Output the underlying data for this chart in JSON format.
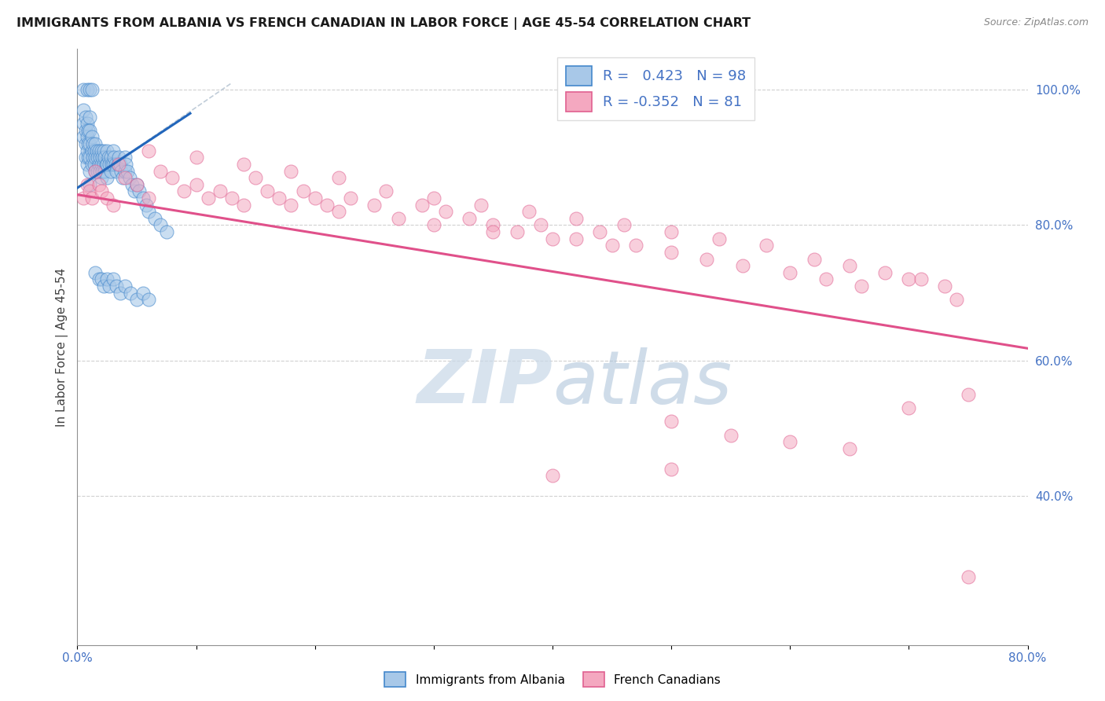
{
  "title": "IMMIGRANTS FROM ALBANIA VS FRENCH CANADIAN IN LABOR FORCE | AGE 45-54 CORRELATION CHART",
  "source": "Source: ZipAtlas.com",
  "ylabel": "In Labor Force | Age 45-54",
  "xlim": [
    0.0,
    0.8
  ],
  "ylim": [
    0.18,
    1.06
  ],
  "right_yticks": [
    0.4,
    0.6,
    0.8,
    1.0
  ],
  "right_yticklabels": [
    "40.0%",
    "60.0%",
    "80.0%",
    "100.0%"
  ],
  "R_albania": 0.423,
  "N_albania": 98,
  "R_french": -0.352,
  "N_french": 81,
  "color_albania_fill": "#a8c8e8",
  "color_albania_edge": "#4488cc",
  "color_french_fill": "#f4a8c0",
  "color_french_edge": "#e06090",
  "color_trendline_albania": "#2266bb",
  "color_trendline_french": "#e0508a",
  "color_refline": "#c8c8c8",
  "color_grid": "#d0d0d0",
  "color_axis_text": "#4472c4",
  "trendline_fr_x0": 0.0,
  "trendline_fr_y0": 0.845,
  "trendline_fr_x1": 0.8,
  "trendline_fr_y1": 0.618,
  "trendline_alb_x0": 0.0,
  "trendline_alb_y0": 0.855,
  "trendline_alb_x1": 0.095,
  "trendline_alb_y1": 0.965,
  "refline_x0": 0.005,
  "refline_y0": 0.86,
  "refline_x1": 0.13,
  "refline_y1": 1.01,
  "watermark_zip_color": "#c8d8e8",
  "watermark_atlas_color": "#a8c0d8",
  "albania_x": [
    0.005,
    0.005,
    0.005,
    0.007,
    0.007,
    0.007,
    0.007,
    0.008,
    0.008,
    0.008,
    0.008,
    0.009,
    0.009,
    0.009,
    0.01,
    0.01,
    0.01,
    0.01,
    0.01,
    0.01,
    0.012,
    0.012,
    0.012,
    0.013,
    0.013,
    0.014,
    0.014,
    0.015,
    0.015,
    0.015,
    0.016,
    0.017,
    0.017,
    0.018,
    0.018,
    0.019,
    0.019,
    0.02,
    0.02,
    0.02,
    0.021,
    0.021,
    0.022,
    0.022,
    0.023,
    0.023,
    0.024,
    0.025,
    0.025,
    0.025,
    0.026,
    0.027,
    0.028,
    0.028,
    0.029,
    0.03,
    0.03,
    0.031,
    0.032,
    0.033,
    0.034,
    0.035,
    0.036,
    0.037,
    0.038,
    0.04,
    0.04,
    0.041,
    0.042,
    0.044,
    0.046,
    0.048,
    0.05,
    0.052,
    0.055,
    0.058,
    0.06,
    0.065,
    0.07,
    0.075,
    0.005,
    0.008,
    0.01,
    0.012,
    0.015,
    0.018,
    0.02,
    0.022,
    0.025,
    0.027,
    0.03,
    0.033,
    0.036,
    0.04,
    0.045,
    0.05,
    0.055,
    0.06
  ],
  "albania_y": [
    0.97,
    0.95,
    0.93,
    0.96,
    0.94,
    0.92,
    0.9,
    0.95,
    0.93,
    0.91,
    0.89,
    0.94,
    0.92,
    0.9,
    0.96,
    0.94,
    0.92,
    0.9,
    0.88,
    0.86,
    0.93,
    0.91,
    0.89,
    0.92,
    0.9,
    0.91,
    0.89,
    0.92,
    0.9,
    0.88,
    0.91,
    0.9,
    0.88,
    0.91,
    0.89,
    0.9,
    0.88,
    0.91,
    0.89,
    0.87,
    0.9,
    0.88,
    0.91,
    0.89,
    0.9,
    0.88,
    0.89,
    0.91,
    0.89,
    0.87,
    0.9,
    0.89,
    0.9,
    0.88,
    0.89,
    0.91,
    0.89,
    0.9,
    0.89,
    0.88,
    0.89,
    0.9,
    0.89,
    0.88,
    0.87,
    0.9,
    0.88,
    0.89,
    0.88,
    0.87,
    0.86,
    0.85,
    0.86,
    0.85,
    0.84,
    0.83,
    0.82,
    0.81,
    0.8,
    0.79,
    1.0,
    1.0,
    1.0,
    1.0,
    0.73,
    0.72,
    0.72,
    0.71,
    0.72,
    0.71,
    0.72,
    0.71,
    0.7,
    0.71,
    0.7,
    0.69,
    0.7,
    0.69
  ],
  "french_x": [
    0.005,
    0.008,
    0.01,
    0.012,
    0.015,
    0.018,
    0.02,
    0.025,
    0.03,
    0.035,
    0.04,
    0.05,
    0.06,
    0.07,
    0.08,
    0.09,
    0.1,
    0.11,
    0.12,
    0.13,
    0.14,
    0.15,
    0.16,
    0.17,
    0.18,
    0.19,
    0.2,
    0.21,
    0.22,
    0.23,
    0.25,
    0.27,
    0.29,
    0.31,
    0.33,
    0.35,
    0.37,
    0.39,
    0.42,
    0.44,
    0.47,
    0.5,
    0.53,
    0.56,
    0.6,
    0.63,
    0.66,
    0.7,
    0.73,
    0.75,
    0.06,
    0.1,
    0.14,
    0.18,
    0.22,
    0.26,
    0.3,
    0.34,
    0.38,
    0.42,
    0.46,
    0.5,
    0.54,
    0.58,
    0.62,
    0.65,
    0.68,
    0.71,
    0.74,
    0.3,
    0.35,
    0.4,
    0.45,
    0.5,
    0.55,
    0.6,
    0.65,
    0.7,
    0.4,
    0.5,
    0.75
  ],
  "french_y": [
    0.84,
    0.86,
    0.85,
    0.84,
    0.88,
    0.86,
    0.85,
    0.84,
    0.83,
    0.89,
    0.87,
    0.86,
    0.84,
    0.88,
    0.87,
    0.85,
    0.86,
    0.84,
    0.85,
    0.84,
    0.83,
    0.87,
    0.85,
    0.84,
    0.83,
    0.85,
    0.84,
    0.83,
    0.82,
    0.84,
    0.83,
    0.81,
    0.83,
    0.82,
    0.81,
    0.8,
    0.79,
    0.8,
    0.78,
    0.79,
    0.77,
    0.76,
    0.75,
    0.74,
    0.73,
    0.72,
    0.71,
    0.72,
    0.71,
    0.55,
    0.91,
    0.9,
    0.89,
    0.88,
    0.87,
    0.85,
    0.84,
    0.83,
    0.82,
    0.81,
    0.8,
    0.79,
    0.78,
    0.77,
    0.75,
    0.74,
    0.73,
    0.72,
    0.69,
    0.8,
    0.79,
    0.78,
    0.77,
    0.51,
    0.49,
    0.48,
    0.47,
    0.53,
    0.43,
    0.44,
    0.28
  ]
}
